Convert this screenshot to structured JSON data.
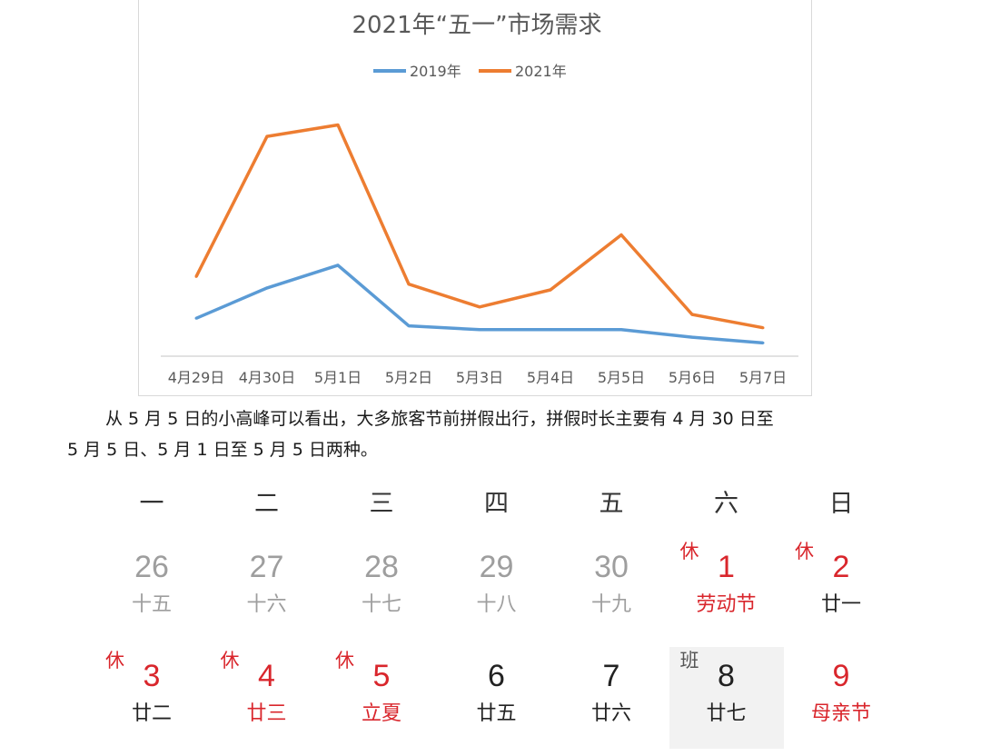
{
  "chart_data": {
    "type": "line",
    "title": "2021年“五一”市场需求",
    "categories": [
      "4月29日",
      "4月30日",
      "5月1日",
      "5月2日",
      "5月3日",
      "5月4日",
      "5月5日",
      "5月6日",
      "5月7日"
    ],
    "series": [
      {
        "name": "2019年",
        "color": "#5b9bd5",
        "values": [
          10,
          18,
          24,
          8,
          7,
          7,
          7,
          5,
          3.5
        ]
      },
      {
        "name": "2021年",
        "color": "#ed7d31",
        "values": [
          21,
          58,
          61,
          19,
          13,
          17.5,
          32,
          11,
          7.5
        ]
      }
    ],
    "ylim": [
      0,
      70
    ],
    "grid": false,
    "legend": "top-center",
    "xlabel": "",
    "ylabel": ""
  },
  "paragraph": {
    "line1": "从 5 月 5 日的小高峰可以看出，大多旅客节前拼假出行，拼假时长主要有 4 月 30 日至",
    "line2": "5 月 5 日、5 月 1 日至 5 月 5 日两种。"
  },
  "calendar": {
    "weekdays": [
      "一",
      "二",
      "三",
      "四",
      "五",
      "六",
      "日"
    ],
    "rows": [
      [
        {
          "day": "26",
          "lunar": "十五",
          "style": "gray",
          "lunar_style": "gray",
          "mark": ""
        },
        {
          "day": "27",
          "lunar": "十六",
          "style": "gray",
          "lunar_style": "gray",
          "mark": ""
        },
        {
          "day": "28",
          "lunar": "十七",
          "style": "gray",
          "lunar_style": "gray",
          "mark": ""
        },
        {
          "day": "29",
          "lunar": "十八",
          "style": "gray",
          "lunar_style": "gray",
          "mark": ""
        },
        {
          "day": "30",
          "lunar": "十九",
          "style": "gray",
          "lunar_style": "gray",
          "mark": ""
        },
        {
          "day": "1",
          "lunar": "劳动节",
          "style": "red",
          "lunar_style": "red",
          "mark": "休",
          "mark_style": "red"
        },
        {
          "day": "2",
          "lunar": "廿一",
          "style": "red",
          "lunar_style": "dark",
          "mark": "休",
          "mark_style": "red"
        }
      ],
      [
        {
          "day": "3",
          "lunar": "廿二",
          "style": "red",
          "lunar_style": "dark",
          "mark": "休",
          "mark_style": "red"
        },
        {
          "day": "4",
          "lunar": "廿三",
          "style": "red",
          "lunar_style": "red",
          "mark": "休",
          "mark_style": "red"
        },
        {
          "day": "5",
          "lunar": "立夏",
          "style": "red",
          "lunar_style": "red",
          "mark": "休",
          "mark_style": "red"
        },
        {
          "day": "6",
          "lunar": "廿五",
          "style": "dark",
          "lunar_style": "dark",
          "mark": ""
        },
        {
          "day": "7",
          "lunar": "廿六",
          "style": "dark",
          "lunar_style": "dark",
          "mark": ""
        },
        {
          "day": "8",
          "lunar": "廿七",
          "style": "dark",
          "lunar_style": "dark",
          "mark": "班",
          "mark_style": "gray",
          "highlight": true
        },
        {
          "day": "9",
          "lunar": "母亲节",
          "style": "red",
          "lunar_style": "red",
          "mark": ""
        }
      ]
    ]
  }
}
